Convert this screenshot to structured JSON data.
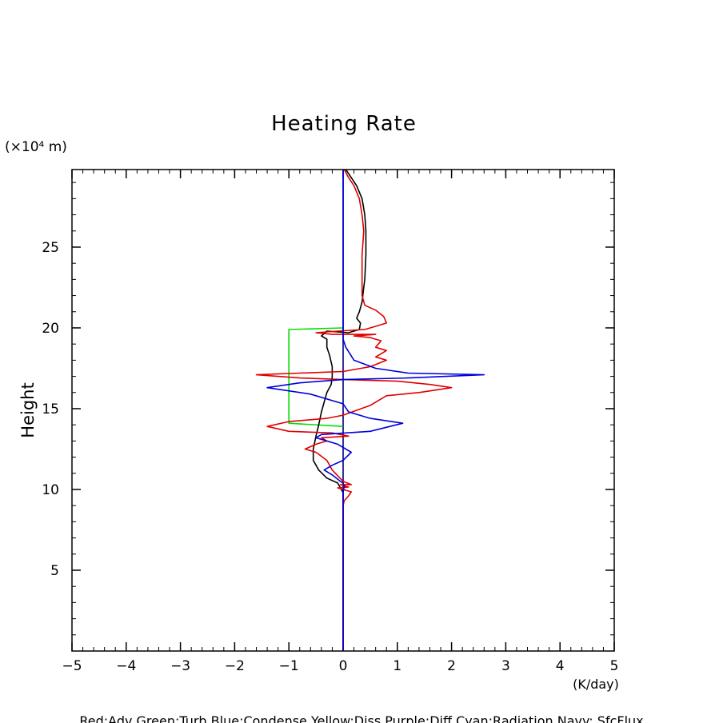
{
  "chart_data": {
    "type": "line",
    "title": "Heating Rate",
    "ylabel": "Height",
    "y_unit_label": "(×10⁴ m)",
    "x_unit_label": "(K/day)",
    "xlim": [
      -5,
      5
    ],
    "ylim": [
      0,
      29.8
    ],
    "x_ticks": [
      -5,
      -4,
      -3,
      -2,
      -1,
      0,
      1,
      2,
      3,
      4,
      5
    ],
    "x_tick_labels": [
      "−5",
      "−4",
      "−3",
      "−2",
      "−1",
      "0",
      "1",
      "2",
      "3",
      "4",
      "5"
    ],
    "y_ticks": [
      5,
      10,
      15,
      20,
      25
    ],
    "y_tick_labels": [
      "5",
      "10",
      "15",
      "20",
      "25"
    ],
    "grid": false,
    "legend_text": "Red:Adv  Green:Turb  Blue:Condense  Yellow:Diss  Purple:Diff  Cyan:Radiation  Navy: SfcFlux",
    "series": [
      {
        "name": "Navy: SfcFlux",
        "color": "#000080",
        "points": [
          [
            0,
            0
          ],
          [
            0,
            29.8
          ]
        ]
      },
      {
        "name": "Green:Turb",
        "color": "#00e000",
        "points": [
          [
            0,
            13.9
          ],
          [
            -1.0,
            14.1
          ],
          [
            -1.0,
            19.9
          ],
          [
            0,
            20.0
          ]
        ]
      },
      {
        "name": "Black",
        "color": "#000000",
        "points": [
          [
            0.0,
            0
          ],
          [
            0.0,
            9.3
          ],
          [
            0.0,
            9.8
          ],
          [
            -0.1,
            10.4
          ],
          [
            -0.3,
            10.7
          ],
          [
            -0.45,
            11.2
          ],
          [
            -0.55,
            11.8
          ],
          [
            -0.55,
            12.5
          ],
          [
            -0.5,
            13.3
          ],
          [
            -0.45,
            14.0
          ],
          [
            -0.4,
            14.8
          ],
          [
            -0.35,
            15.4
          ],
          [
            -0.3,
            16.0
          ],
          [
            -0.22,
            16.5
          ],
          [
            -0.2,
            17.0
          ],
          [
            -0.2,
            17.6
          ],
          [
            -0.25,
            18.3
          ],
          [
            -0.3,
            18.8
          ],
          [
            -0.3,
            19.3
          ],
          [
            -0.4,
            19.5
          ],
          [
            -0.3,
            19.8
          ],
          [
            0.1,
            19.7
          ],
          [
            0.3,
            19.9
          ],
          [
            0.32,
            20.3
          ],
          [
            0.25,
            20.6
          ],
          [
            0.3,
            21.0
          ],
          [
            0.35,
            21.6
          ],
          [
            0.38,
            22.5
          ],
          [
            0.4,
            23.0
          ],
          [
            0.42,
            24.5
          ],
          [
            0.42,
            26.0
          ],
          [
            0.4,
            27.0
          ],
          [
            0.35,
            28.0
          ],
          [
            0.25,
            28.8
          ],
          [
            0.15,
            29.3
          ],
          [
            0.05,
            29.8
          ]
        ]
      },
      {
        "name": "Red:Adv",
        "color": "#e00000",
        "points": [
          [
            0.0,
            0
          ],
          [
            0.0,
            5
          ],
          [
            0.0,
            9.0
          ],
          [
            0.02,
            9.3
          ],
          [
            0.1,
            9.6
          ],
          [
            0.15,
            9.85
          ],
          [
            0.0,
            10.0
          ],
          [
            -0.1,
            10.1
          ],
          [
            0.1,
            10.15
          ],
          [
            -0.05,
            10.3
          ],
          [
            0.15,
            10.3
          ],
          [
            0.0,
            10.5
          ],
          [
            -0.2,
            11.2
          ],
          [
            -0.3,
            11.8
          ],
          [
            -0.5,
            12.3
          ],
          [
            -0.7,
            12.5
          ],
          [
            -0.5,
            12.8
          ],
          [
            -0.3,
            13.0
          ],
          [
            -0.4,
            13.2
          ],
          [
            0.1,
            13.3
          ],
          [
            -0.2,
            13.5
          ],
          [
            -1.0,
            13.6
          ],
          [
            -1.4,
            13.9
          ],
          [
            -1.0,
            14.2
          ],
          [
            -0.3,
            14.4
          ],
          [
            0.0,
            14.6
          ],
          [
            0.5,
            15.2
          ],
          [
            0.8,
            15.8
          ],
          [
            1.4,
            16.0
          ],
          [
            2.0,
            16.3
          ],
          [
            1.6,
            16.5
          ],
          [
            1.0,
            16.7
          ],
          [
            0.0,
            16.8
          ],
          [
            -0.8,
            16.9
          ],
          [
            -1.6,
            17.1
          ],
          [
            -0.8,
            17.2
          ],
          [
            0.0,
            17.3
          ],
          [
            0.5,
            17.6
          ],
          [
            0.8,
            18.0
          ],
          [
            0.6,
            18.2
          ],
          [
            0.8,
            18.6
          ],
          [
            0.6,
            18.8
          ],
          [
            0.7,
            19.2
          ],
          [
            0.5,
            19.4
          ],
          [
            0.2,
            19.5
          ],
          [
            0.6,
            19.6
          ],
          [
            -0.2,
            19.6
          ],
          [
            -0.5,
            19.7
          ],
          [
            -0.1,
            19.8
          ],
          [
            0.4,
            19.9
          ],
          [
            0.6,
            20.1
          ],
          [
            0.8,
            20.3
          ],
          [
            0.75,
            20.7
          ],
          [
            0.6,
            21.1
          ],
          [
            0.4,
            21.4
          ],
          [
            0.35,
            22.0
          ],
          [
            0.35,
            23.0
          ],
          [
            0.35,
            24.5
          ],
          [
            0.38,
            26.0
          ],
          [
            0.35,
            27.0
          ],
          [
            0.3,
            28.0
          ],
          [
            0.2,
            28.8
          ],
          [
            0.1,
            29.3
          ],
          [
            0.02,
            29.8
          ]
        ]
      },
      {
        "name": "Blue:Condense",
        "color": "#0000e0",
        "points": [
          [
            0.0,
            0
          ],
          [
            0.0,
            9.6
          ],
          [
            0.0,
            9.8
          ],
          [
            0.02,
            10.2
          ],
          [
            0.0,
            10.4
          ],
          [
            -0.05,
            10.5
          ],
          [
            -0.2,
            10.9
          ],
          [
            -0.35,
            11.2
          ],
          [
            -0.2,
            11.5
          ],
          [
            0.0,
            11.8
          ],
          [
            0.15,
            12.3
          ],
          [
            -0.1,
            12.8
          ],
          [
            -0.5,
            13.2
          ],
          [
            -0.4,
            13.4
          ],
          [
            0.5,
            13.6
          ],
          [
            1.1,
            14.1
          ],
          [
            0.5,
            14.4
          ],
          [
            0.1,
            14.8
          ],
          [
            0.0,
            15.3
          ],
          [
            -0.6,
            15.9
          ],
          [
            -1.4,
            16.3
          ],
          [
            -0.8,
            16.6
          ],
          [
            0.0,
            16.8
          ],
          [
            1.2,
            16.9
          ],
          [
            2.6,
            17.1
          ],
          [
            1.2,
            17.2
          ],
          [
            0.6,
            17.5
          ],
          [
            0.2,
            18.0
          ],
          [
            0.05,
            18.8
          ],
          [
            0.0,
            19.3
          ],
          [
            0.0,
            29.8
          ]
        ]
      }
    ]
  }
}
